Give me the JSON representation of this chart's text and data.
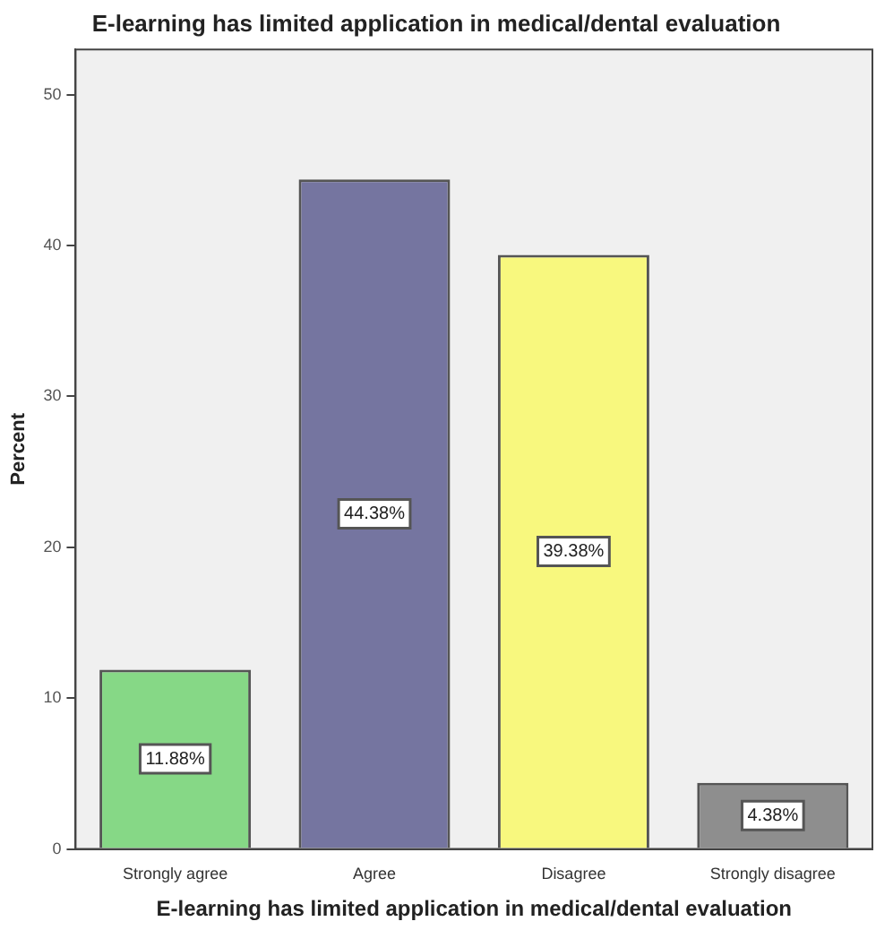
{
  "chart_data": {
    "type": "bar",
    "title": "E-learning has limited application in medical/dental evaluation",
    "xlabel": "E-learning has limited application in medical/dental evaluation",
    "ylabel": "Percent",
    "categories": [
      "Strongly agree",
      "Agree",
      "Disagree",
      "Strongly disagree"
    ],
    "values": [
      11.88,
      44.38,
      39.38,
      4.38
    ],
    "colors": [
      "#86d886",
      "#7575a0",
      "#f8f87e",
      "#8e8e8e"
    ],
    "value_labels": [
      "11.88%",
      "44.38%",
      "39.38%",
      "4.38%"
    ],
    "ylim": [
      0,
      53
    ],
    "yticks": [
      0,
      10,
      20,
      30,
      40,
      50
    ],
    "grid": false,
    "legend": false
  }
}
